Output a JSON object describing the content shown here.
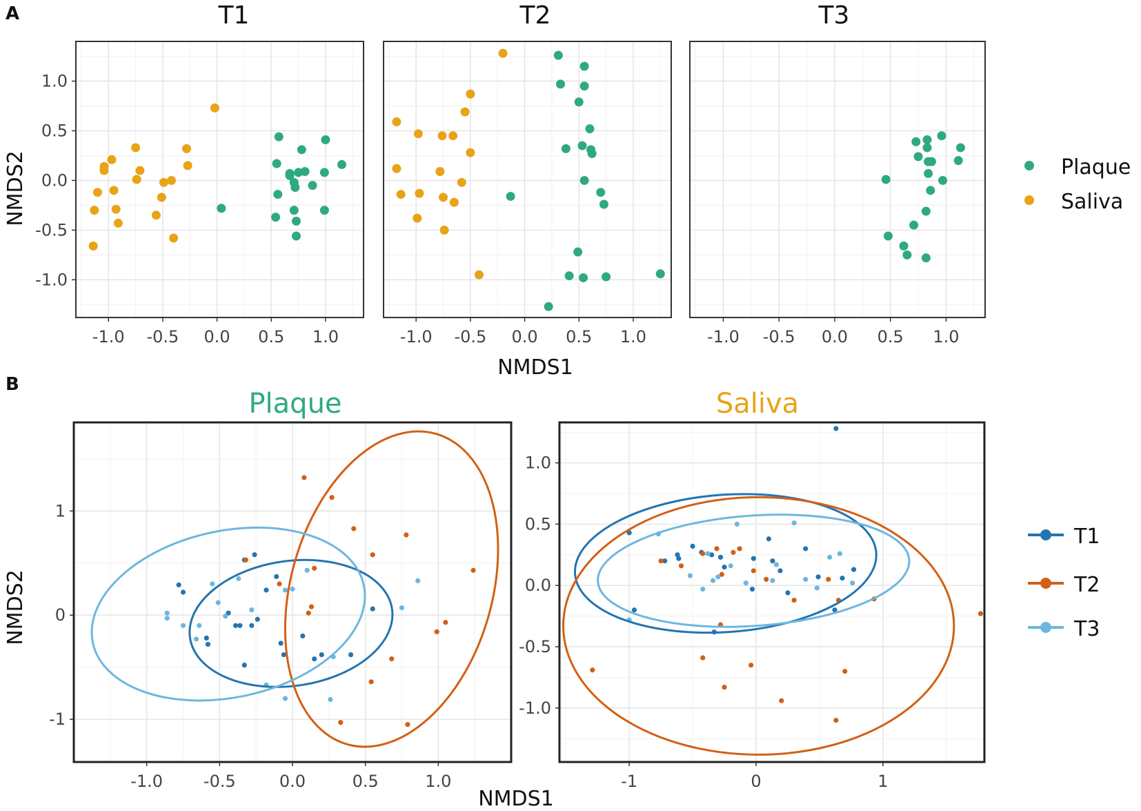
{
  "colors": {
    "plaque": "#2EAA7E",
    "saliva": "#E8A317",
    "t1": "#2474B0",
    "t2": "#D35F14",
    "t3": "#6DB6E0"
  },
  "panel_labels": {
    "a": "A",
    "b": "B"
  },
  "chart_data": [
    {
      "id": "A",
      "type": "scatter",
      "facets": [
        "T1",
        "T2",
        "T3"
      ],
      "xlabel": "NMDS1",
      "ylabel": "NMDS2",
      "xlim": [
        -1.3,
        1.35
      ],
      "ylim": [
        -1.38,
        1.4
      ],
      "xticks": [
        -1.0,
        -0.5,
        0.0,
        0.5,
        1.0
      ],
      "xtick_labels": [
        "-1.0",
        "-0.5",
        "0.0",
        "0.5",
        "1.0"
      ],
      "yticks": [
        1.0,
        0.5,
        0.0,
        -0.5,
        -1.0
      ],
      "ytick_labels": [
        "1.0",
        "0.5",
        "0.0",
        "-0.5",
        "-1.0"
      ],
      "legend": [
        {
          "label": "Plaque",
          "color_key": "plaque"
        },
        {
          "label": "Saliva",
          "color_key": "saliva"
        }
      ],
      "series": {
        "T1": {
          "Plaque": [
            [
              0.57,
              0.44
            ],
            [
              0.78,
              0.31
            ],
            [
              1.0,
              0.41
            ],
            [
              1.15,
              0.16
            ],
            [
              0.55,
              0.17
            ],
            [
              0.67,
              0.07
            ],
            [
              0.75,
              0.08
            ],
            [
              0.81,
              0.09
            ],
            [
              0.99,
              0.08
            ],
            [
              0.67,
              0.05
            ],
            [
              0.71,
              -0.02
            ],
            [
              0.72,
              -0.07
            ],
            [
              0.88,
              -0.05
            ],
            [
              0.56,
              -0.14
            ],
            [
              0.54,
              -0.37
            ],
            [
              0.71,
              -0.3
            ],
            [
              0.73,
              -0.41
            ],
            [
              0.99,
              -0.3
            ],
            [
              0.73,
              -0.56
            ],
            [
              0.04,
              -0.28
            ]
          ],
          "Saliva": [
            [
              -0.02,
              0.73
            ],
            [
              -0.75,
              0.33
            ],
            [
              -0.28,
              0.32
            ],
            [
              -0.97,
              0.21
            ],
            [
              -1.04,
              0.14
            ],
            [
              -1.04,
              0.1
            ],
            [
              -0.71,
              0.1
            ],
            [
              -0.74,
              0.01
            ],
            [
              -0.49,
              -0.02
            ],
            [
              -0.42,
              0.0
            ],
            [
              -0.27,
              0.15
            ],
            [
              -1.1,
              -0.12
            ],
            [
              -0.95,
              -0.1
            ],
            [
              -0.51,
              -0.17
            ],
            [
              -1.13,
              -0.3
            ],
            [
              -0.93,
              -0.29
            ],
            [
              -0.91,
              -0.43
            ],
            [
              -0.56,
              -0.35
            ],
            [
              -0.4,
              -0.58
            ],
            [
              -1.14,
              -0.66
            ]
          ]
        },
        "T2": {
          "Plaque": [
            [
              0.31,
              1.26
            ],
            [
              0.55,
              1.15
            ],
            [
              0.33,
              0.97
            ],
            [
              0.55,
              0.95
            ],
            [
              0.5,
              0.79
            ],
            [
              0.6,
              0.52
            ],
            [
              0.53,
              0.35
            ],
            [
              0.38,
              0.32
            ],
            [
              0.61,
              0.31
            ],
            [
              0.62,
              0.27
            ],
            [
              0.55,
              0.0
            ],
            [
              0.7,
              -0.12
            ],
            [
              0.73,
              -0.24
            ],
            [
              -0.13,
              -0.16
            ],
            [
              0.49,
              -0.72
            ],
            [
              0.41,
              -0.96
            ],
            [
              0.54,
              -0.98
            ],
            [
              0.75,
              -0.97
            ],
            [
              1.25,
              -0.94
            ],
            [
              0.22,
              -1.27
            ]
          ],
          "Saliva": [
            [
              -0.2,
              1.28
            ],
            [
              -0.5,
              0.87
            ],
            [
              -0.55,
              0.69
            ],
            [
              -1.18,
              0.59
            ],
            [
              -0.98,
              0.47
            ],
            [
              -0.76,
              0.45
            ],
            [
              -0.66,
              0.45
            ],
            [
              -0.5,
              0.28
            ],
            [
              -0.78,
              0.09
            ],
            [
              -1.18,
              0.12
            ],
            [
              -0.58,
              -0.02
            ],
            [
              -1.14,
              -0.14
            ],
            [
              -0.97,
              -0.13
            ],
            [
              -0.75,
              -0.17
            ],
            [
              -0.65,
              -0.22
            ],
            [
              -0.99,
              -0.38
            ],
            [
              -0.74,
              -0.5
            ],
            [
              -0.42,
              -0.95
            ]
          ]
        },
        "T3": {
          "Plaque": [
            [
              0.73,
              0.39
            ],
            [
              0.83,
              0.41
            ],
            [
              0.96,
              0.45
            ],
            [
              1.13,
              0.33
            ],
            [
              0.83,
              0.33
            ],
            [
              0.75,
              0.24
            ],
            [
              0.84,
              0.19
            ],
            [
              0.87,
              0.19
            ],
            [
              0.84,
              0.07
            ],
            [
              1.11,
              0.2
            ],
            [
              0.97,
              0.0
            ],
            [
              0.46,
              0.01
            ],
            [
              0.86,
              -0.1
            ],
            [
              0.82,
              -0.31
            ],
            [
              0.71,
              -0.45
            ],
            [
              0.48,
              -0.56
            ],
            [
              0.62,
              -0.66
            ],
            [
              0.65,
              -0.75
            ],
            [
              0.82,
              -0.78
            ]
          ]
        }
      }
    },
    {
      "id": "B-Plaque",
      "type": "scatter",
      "title": "Plaque",
      "title_color_key": "plaque",
      "xlabel": "NMDS1",
      "ylabel": "NMDS2",
      "xlim": [
        -1.5,
        1.5
      ],
      "ylim": [
        -1.41,
        1.85
      ],
      "xticks": [
        -1.0,
        -0.5,
        0.0,
        0.5,
        1.0
      ],
      "xtick_labels": [
        "-1.0",
        "-0.5",
        "0.0",
        "0.5",
        "1.0"
      ],
      "yticks": [
        1,
        0,
        -1
      ],
      "ytick_labels": [
        "1",
        "0",
        "-1"
      ],
      "series": {
        "T1": [
          [
            -0.78,
            0.29
          ],
          [
            -0.75,
            0.22
          ],
          [
            -0.26,
            0.58
          ],
          [
            -0.33,
            0.53
          ],
          [
            -0.11,
            0.37
          ],
          [
            -0.44,
            0.02
          ],
          [
            -0.59,
            -0.22
          ],
          [
            -0.58,
            -0.28
          ],
          [
            -0.39,
            -0.1
          ],
          [
            -0.36,
            -0.1
          ],
          [
            -0.28,
            -0.1
          ],
          [
            -0.24,
            -0.04
          ],
          [
            -0.18,
            0.24
          ],
          [
            -0.08,
            -0.27
          ],
          [
            0.07,
            -0.2
          ],
          [
            0.2,
            -0.38
          ],
          [
            -0.06,
            -0.38
          ],
          [
            -0.33,
            -0.48
          ],
          [
            0.15,
            -0.42
          ],
          [
            0.4,
            -0.38
          ],
          [
            0.55,
            0.06
          ]
        ],
        "T2": [
          [
            0.08,
            1.32
          ],
          [
            0.27,
            1.13
          ],
          [
            0.42,
            0.83
          ],
          [
            0.78,
            0.77
          ],
          [
            0.55,
            0.58
          ],
          [
            -0.09,
            0.3
          ],
          [
            0.15,
            0.45
          ],
          [
            0.13,
            0.08
          ],
          [
            0.11,
            0.02
          ],
          [
            0.68,
            -0.42
          ],
          [
            0.54,
            -0.64
          ],
          [
            0.99,
            -0.16
          ],
          [
            1.05,
            -0.07
          ],
          [
            1.24,
            0.43
          ],
          [
            0.79,
            -1.05
          ],
          [
            0.33,
            -1.03
          ],
          [
            -0.32,
            0.53
          ]
        ],
        "T3": [
          [
            -0.86,
            0.02
          ],
          [
            -0.86,
            -0.03
          ],
          [
            -0.75,
            -0.1
          ],
          [
            -0.64,
            -0.1
          ],
          [
            -0.66,
            -0.23
          ],
          [
            -0.55,
            0.3
          ],
          [
            -0.51,
            0.12
          ],
          [
            -0.46,
            -0.01
          ],
          [
            -0.37,
            0.35
          ],
          [
            -0.28,
            0.05
          ],
          [
            -0.05,
            0.24
          ],
          [
            0.1,
            0.43
          ],
          [
            0.0,
            0.25
          ],
          [
            0.28,
            -0.4
          ],
          [
            0.26,
            -0.81
          ],
          [
            0.75,
            0.07
          ],
          [
            0.86,
            0.33
          ],
          [
            -0.05,
            -0.8
          ],
          [
            -0.18,
            -0.67
          ]
        ]
      },
      "ellipses": {
        "T1": {
          "cx": -0.01,
          "cy": -0.08,
          "rx": 0.7,
          "ry": 0.6,
          "angle_deg": -8
        },
        "T2": {
          "cx": 0.68,
          "cy": 0.25,
          "rx": 0.69,
          "ry": 1.55,
          "angle_deg": 16
        },
        "T3": {
          "cx": -0.44,
          "cy": 0.01,
          "rx": 0.95,
          "ry": 0.8,
          "angle_deg": -12
        }
      }
    },
    {
      "id": "B-Saliva",
      "type": "scatter",
      "title": "Saliva",
      "title_color_key": "saliva",
      "xlabel": "NMDS1",
      "ylabel": "NMDS2",
      "xlim": [
        -1.55,
        1.8
      ],
      "ylim": [
        -1.44,
        1.33
      ],
      "xticks": [
        -1,
        0,
        1
      ],
      "xtick_labels": [
        "-1",
        "0",
        "1"
      ],
      "yticks": [
        1.0,
        0.5,
        0.0,
        -0.5,
        -1.0
      ],
      "ytick_labels": [
        "1.0",
        "0.5",
        "0.0",
        "-0.5",
        "-1.0"
      ],
      "series": {
        "T1": [
          [
            -1.0,
            0.43
          ],
          [
            -0.96,
            -0.2
          ],
          [
            -0.72,
            0.2
          ],
          [
            -0.62,
            0.25
          ],
          [
            -0.61,
            0.22
          ],
          [
            -0.5,
            0.32
          ],
          [
            -0.43,
            0.27
          ],
          [
            -0.35,
            0.25
          ],
          [
            -0.28,
            0.23
          ],
          [
            -0.25,
            0.15
          ],
          [
            -0.33,
            -0.38
          ],
          [
            -0.03,
            -0.03
          ],
          [
            -0.02,
            0.22
          ],
          [
            0.1,
            0.38
          ],
          [
            0.13,
            0.2
          ],
          [
            0.19,
            0.12
          ],
          [
            0.25,
            -0.06
          ],
          [
            0.39,
            0.3
          ],
          [
            0.49,
            0.07
          ],
          [
            0.62,
            -0.2
          ],
          [
            0.63,
            1.28
          ],
          [
            0.68,
            0.06
          ],
          [
            0.77,
            0.13
          ]
        ],
        "T2": [
          [
            -0.75,
            0.2
          ],
          [
            -0.59,
            0.16
          ],
          [
            -0.42,
            0.26
          ],
          [
            -0.31,
            0.3
          ],
          [
            -0.27,
            0.09
          ],
          [
            -0.18,
            0.27
          ],
          [
            -0.13,
            0.3
          ],
          [
            -0.02,
            0.12
          ],
          [
            -0.28,
            -0.32
          ],
          [
            -0.42,
            -0.59
          ],
          [
            -0.25,
            -0.83
          ],
          [
            -0.04,
            -0.65
          ],
          [
            0.2,
            -0.94
          ],
          [
            0.3,
            -0.12
          ],
          [
            0.65,
            -0.12
          ],
          [
            0.63,
            -1.1
          ],
          [
            0.7,
            -0.7
          ],
          [
            0.93,
            -0.11
          ],
          [
            1.77,
            -0.23
          ],
          [
            -1.29,
            -0.69
          ],
          [
            0.57,
            0.05
          ],
          [
            0.08,
            0.05
          ]
        ],
        "T3": [
          [
            -1.0,
            -0.28
          ],
          [
            -0.77,
            0.42
          ],
          [
            -0.52,
            0.08
          ],
          [
            -0.42,
            -0.03
          ],
          [
            -0.38,
            0.26
          ],
          [
            -0.3,
            0.07
          ],
          [
            -0.2,
            0.16
          ],
          [
            -0.15,
            0.5
          ],
          [
            -0.08,
            0.02
          ],
          [
            0.16,
            0.17
          ],
          [
            0.3,
            0.51
          ],
          [
            0.39,
            0.05
          ],
          [
            0.48,
            -0.02
          ],
          [
            0.58,
            0.23
          ],
          [
            0.66,
            0.26
          ],
          [
            0.76,
            0.02
          ],
          [
            -0.34,
            0.04
          ],
          [
            0.13,
            0.04
          ]
        ]
      },
      "ellipses": {
        "T1": {
          "cx": -0.24,
          "cy": 0.18,
          "rx": 1.19,
          "ry": 0.56,
          "angle_deg": -4
        },
        "T2": {
          "cx": 0.02,
          "cy": -0.33,
          "rx": 1.54,
          "ry": 1.05,
          "angle_deg": 0
        },
        "T3": {
          "cx": -0.02,
          "cy": 0.12,
          "rx": 1.23,
          "ry": 0.45,
          "angle_deg": -4
        }
      }
    }
  ],
  "legend_b": [
    {
      "label": "T1",
      "color_key": "t1"
    },
    {
      "label": "T2",
      "color_key": "t2"
    },
    {
      "label": "T3",
      "color_key": "t3"
    }
  ]
}
